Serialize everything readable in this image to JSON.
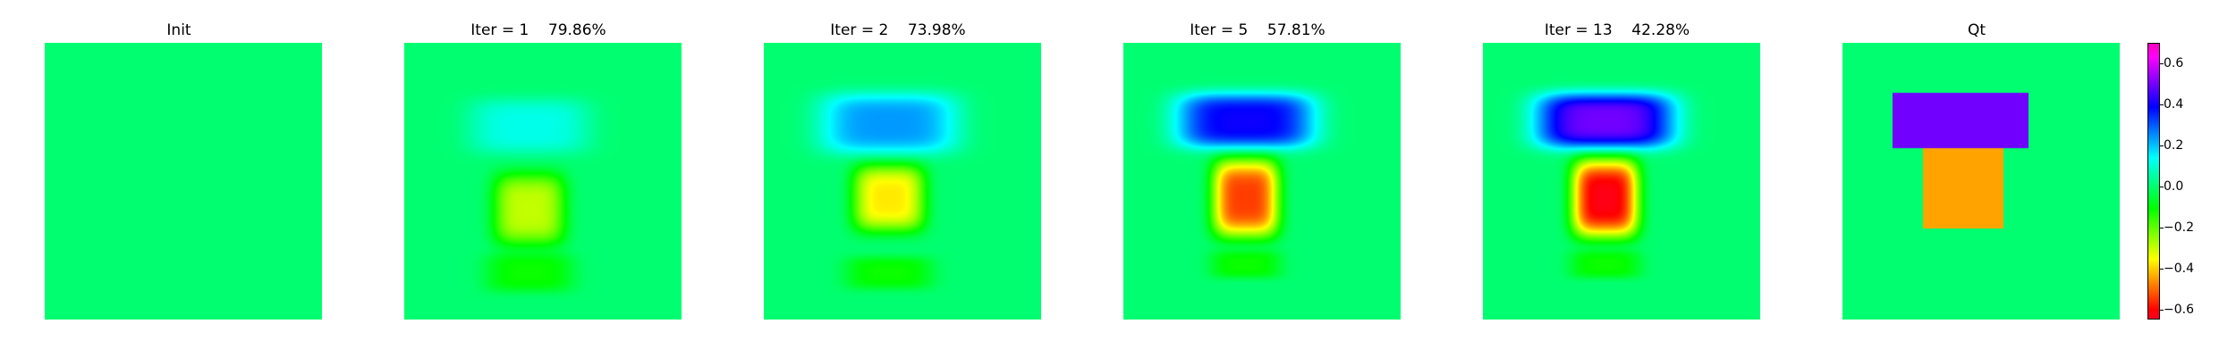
{
  "panels": [
    {
      "title": "Init"
    },
    {
      "title": "Iter = 1    79.86%"
    },
    {
      "title": "Iter = 2    73.98%"
    },
    {
      "title": "Iter = 5    57.81%"
    },
    {
      "title": "Iter = 13    42.28%"
    },
    {
      "title": "Qt"
    }
  ],
  "chart_data": {
    "type": "heatmap",
    "colormap": "gist_rainbow",
    "vmin": -0.65,
    "vmax": 0.7,
    "background_value": 0.0,
    "panels": [
      {
        "title": "Init",
        "blobs": []
      },
      {
        "title": "Iter = 1    79.86%",
        "blobs": [
          {
            "cx": 0.45,
            "cy": 0.3,
            "sx": 0.22,
            "sy": 0.1,
            "value": 0.12
          },
          {
            "cx": 0.45,
            "cy": 0.6,
            "sx": 0.13,
            "sy": 0.13,
            "value": -0.3
          },
          {
            "cx": 0.45,
            "cy": 0.83,
            "sx": 0.16,
            "sy": 0.07,
            "value": -0.12
          }
        ]
      },
      {
        "title": "Iter = 2    73.98%",
        "blobs": [
          {
            "cx": 0.45,
            "cy": 0.29,
            "sx": 0.25,
            "sy": 0.11,
            "value": 0.24
          },
          {
            "cx": 0.45,
            "cy": 0.56,
            "sx": 0.13,
            "sy": 0.12,
            "value": -0.38
          },
          {
            "cx": 0.45,
            "cy": 0.83,
            "sx": 0.16,
            "sy": 0.06,
            "value": -0.12
          }
        ]
      },
      {
        "title": "Iter = 5    57.81%",
        "blobs": [
          {
            "cx": 0.44,
            "cy": 0.28,
            "sx": 0.25,
            "sy": 0.1,
            "value": 0.4
          },
          {
            "cx": 0.44,
            "cy": 0.56,
            "sx": 0.12,
            "sy": 0.14,
            "value": -0.55
          },
          {
            "cx": 0.44,
            "cy": 0.8,
            "sx": 0.13,
            "sy": 0.05,
            "value": -0.12
          }
        ]
      },
      {
        "title": "Iter = 13    42.28%",
        "blobs": [
          {
            "cx": 0.44,
            "cy": 0.28,
            "sx": 0.25,
            "sy": 0.1,
            "value": 0.5
          },
          {
            "cx": 0.44,
            "cy": 0.56,
            "sx": 0.12,
            "sy": 0.14,
            "value": -0.63
          },
          {
            "cx": 0.44,
            "cy": 0.8,
            "sx": 0.13,
            "sy": 0.05,
            "value": -0.12
          }
        ]
      },
      {
        "title": "Qt",
        "rects": [
          {
            "x0": 0.18,
            "x1": 0.67,
            "y0": 0.18,
            "y1": 0.38,
            "value": 0.5
          },
          {
            "x0": 0.29,
            "x1": 0.58,
            "y0": 0.38,
            "y1": 0.67,
            "value": -0.45
          }
        ]
      }
    ],
    "colorbar": {
      "ticks": [
        0.6,
        0.4,
        0.2,
        0.0,
        -0.2,
        -0.4,
        -0.6
      ],
      "tick_labels": [
        "0.6",
        "0.4",
        "0.2",
        "0.0",
        "−0.2",
        "−0.4",
        "−0.6"
      ]
    }
  }
}
